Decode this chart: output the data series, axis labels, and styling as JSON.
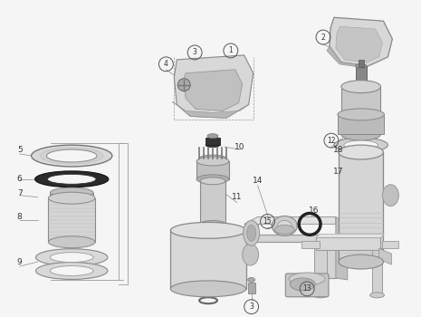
{
  "bg_color": "#f5f5f5",
  "lc": "#888888",
  "lc2": "#aaaaaa",
  "dark": "#444444",
  "mid": "#cccccc",
  "light": "#e0e0e0",
  "figsize": [
    4.65,
    3.5
  ],
  "dpi": 100
}
